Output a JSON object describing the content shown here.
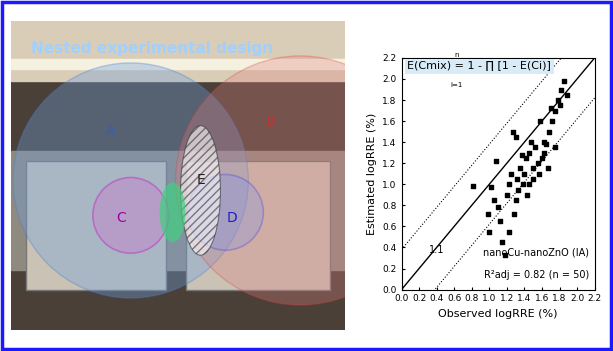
{
  "panel": {
    "title": "Nested experimental design",
    "regions": [
      "A",
      "B",
      "C",
      "D",
      "E"
    ]
  },
  "chart_data": {
    "type": "scatter",
    "formula": "E(Cmix) = 1 - ∏ [1 - E(Ci)]",
    "formula_upper": "n",
    "formula_lower": "i=1",
    "x_label": "Observed logRRE (%)",
    "y_label": "Estimated logRRE (%)",
    "annotations": [
      "nanoCu-nanoZnO (IA)",
      "R²adj = 0.82 (n = 50)"
    ],
    "line_label": "1:1",
    "band_offset": 0.38,
    "color": "#000000",
    "marker": "s",
    "x": [
      0.82,
      0.98,
      1.0,
      1.02,
      1.05,
      1.08,
      1.1,
      1.12,
      1.15,
      1.18,
      1.2,
      1.22,
      1.22,
      1.25,
      1.27,
      1.28,
      1.3,
      1.3,
      1.32,
      1.33,
      1.35,
      1.37,
      1.38,
      1.4,
      1.42,
      1.43,
      1.45,
      1.45,
      1.48,
      1.5,
      1.5,
      1.52,
      1.55,
      1.57,
      1.58,
      1.6,
      1.62,
      1.62,
      1.65,
      1.67,
      1.68,
      1.7,
      1.72,
      1.75,
      1.75,
      1.78,
      1.8,
      1.82,
      1.85,
      1.88
    ],
    "values": [
      0.98,
      0.72,
      0.55,
      0.97,
      0.85,
      1.22,
      0.78,
      0.65,
      0.45,
      0.33,
      0.9,
      1.0,
      0.55,
      1.1,
      1.5,
      0.72,
      1.45,
      0.85,
      1.05,
      0.95,
      1.15,
      1.28,
      1.0,
      1.1,
      1.25,
      0.9,
      1.3,
      1.0,
      1.4,
      1.15,
      1.05,
      1.35,
      1.2,
      1.1,
      1.6,
      1.25,
      1.3,
      1.4,
      1.38,
      1.15,
      1.5,
      1.72,
      1.6,
      1.7,
      1.35,
      1.8,
      1.75,
      1.9,
      1.98,
      1.85
    ],
    "xlim": [
      0,
      2.2
    ],
    "ylim": [
      0,
      2.2
    ],
    "xticks": [
      {
        "value": 0,
        "label": "0.0"
      },
      0.2,
      0.4,
      0.6,
      0.8,
      {
        "value": 1,
        "label": "1.0"
      },
      1.2,
      1.4,
      1.6,
      1.8,
      {
        "value": 2,
        "label": "2.0"
      },
      2.2
    ],
    "yticks": [
      {
        "value": 0,
        "label": "0.0"
      },
      0.2,
      0.4,
      0.6,
      0.8,
      {
        "value": 1,
        "label": "1.0"
      },
      1.2,
      1.4,
      1.6,
      1.8,
      {
        "value": 2,
        "label": "2.0"
      },
      2.2
    ],
    "grid": false
  }
}
